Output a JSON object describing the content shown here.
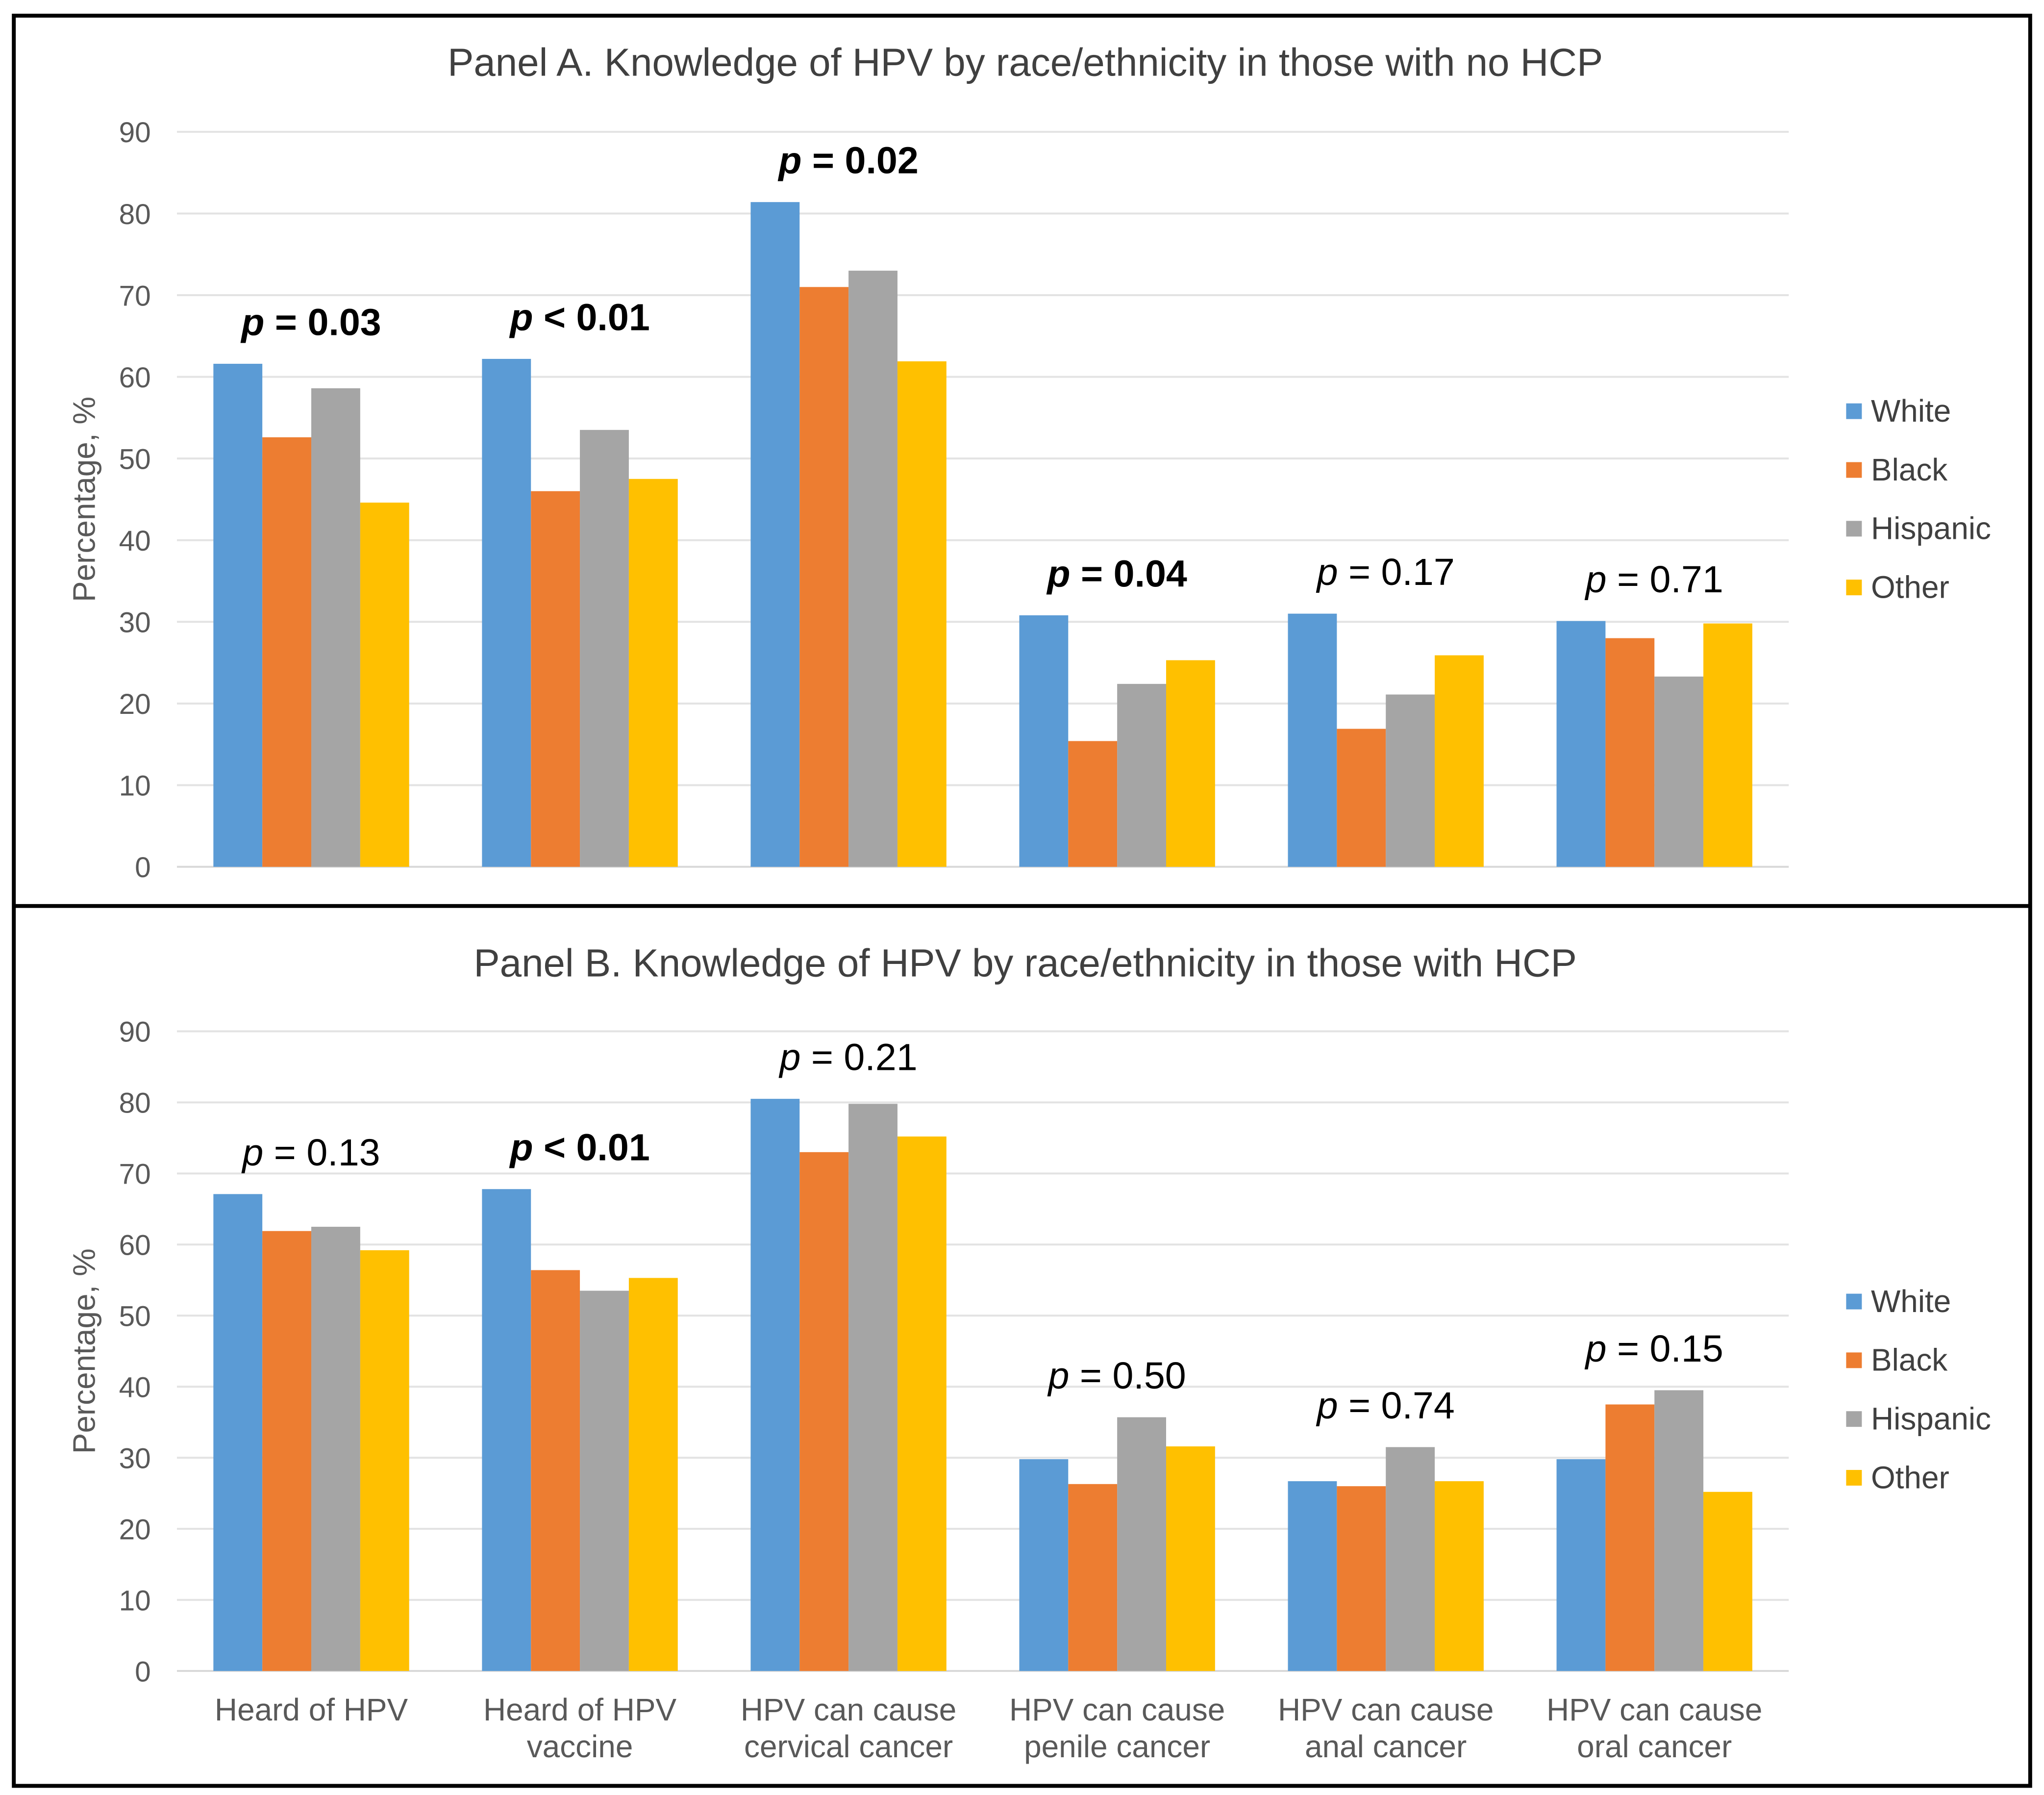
{
  "colors": {
    "White": "#5b9bd5",
    "Black": "#ed7d31",
    "Hispanic": "#a5a5a5",
    "Other": "#ffc000"
  },
  "chart_data": [
    {
      "type": "bar",
      "title": "Panel A. Knowledge of HPV by race/ethnicity in those with no HCP",
      "xlabel": "",
      "ylabel": "Percentage, %",
      "ylim": [
        0,
        90
      ],
      "yticks": [
        "0",
        "10",
        "20",
        "30",
        "40",
        "50",
        "60",
        "70",
        "80",
        "90"
      ],
      "grid": true,
      "legend": "right",
      "categories": [
        "Heard of HPV",
        "Heard of HPV vaccine",
        "HPV can cause cervical cancer",
        "HPV can cause penile cancer",
        "HPV can cause anal cancer",
        "HPV can cause oral cancer"
      ],
      "series": [
        {
          "name": "White",
          "values": [
            61.6,
            62.2,
            81.4,
            30.8,
            31.0,
            30.1
          ]
        },
        {
          "name": "Black",
          "values": [
            52.6,
            46.0,
            71.0,
            15.4,
            16.9,
            28.0
          ]
        },
        {
          "name": "Hispanic",
          "values": [
            58.6,
            53.5,
            73.0,
            22.4,
            21.1,
            23.3
          ]
        },
        {
          "name": "Other",
          "values": [
            44.6,
            47.5,
            61.9,
            25.3,
            25.9,
            29.8
          ]
        }
      ],
      "p_values": [
        {
          "prefix": "p",
          "text": " = 0.03",
          "bold": true
        },
        {
          "prefix": "p",
          "text": " < 0.01",
          "bold": true
        },
        {
          "prefix": "p",
          "text": " = 0.02",
          "bold": true
        },
        {
          "prefix": "p",
          "text": " = 0.04",
          "bold": true
        },
        {
          "prefix": "p",
          "text": " = 0.17",
          "bold": false
        },
        {
          "prefix": "p",
          "text": " = 0.71",
          "bold": false
        }
      ]
    },
    {
      "type": "bar",
      "title": "Panel B. Knowledge of HPV by race/ethnicity in those with HCP",
      "xlabel": "",
      "ylabel": "Percentage, %",
      "ylim": [
        0,
        90
      ],
      "yticks": [
        "0",
        "10",
        "20",
        "30",
        "40",
        "50",
        "60",
        "70",
        "80",
        "90"
      ],
      "grid": true,
      "legend": "right",
      "categories": [
        "Heard of HPV",
        "Heard of HPV vaccine",
        "HPV can cause cervical cancer",
        "HPV can cause penile cancer",
        "HPV can cause anal cancer",
        "HPV can cause oral cancer"
      ],
      "category_lines": [
        [
          "Heard of HPV",
          ""
        ],
        [
          "Heard of HPV",
          "vaccine"
        ],
        [
          "HPV can cause",
          "cervical cancer"
        ],
        [
          "HPV can cause",
          "penile cancer"
        ],
        [
          "HPV can cause",
          "anal cancer"
        ],
        [
          "HPV can cause",
          "oral cancer"
        ]
      ],
      "series": [
        {
          "name": "White",
          "values": [
            67.1,
            67.8,
            80.5,
            29.8,
            26.7,
            29.8
          ]
        },
        {
          "name": "Black",
          "values": [
            61.9,
            56.4,
            73.0,
            26.3,
            26.0,
            37.5
          ]
        },
        {
          "name": "Hispanic",
          "values": [
            62.5,
            53.5,
            79.8,
            35.7,
            31.5,
            39.5
          ]
        },
        {
          "name": "Other",
          "values": [
            59.2,
            55.3,
            75.2,
            31.6,
            26.7,
            25.2
          ]
        }
      ],
      "p_values": [
        {
          "prefix": "p",
          "text": " = 0.13",
          "bold": false
        },
        {
          "prefix": "p",
          "text": " < 0.01",
          "bold": true
        },
        {
          "prefix": "p",
          "text": " =  0.21",
          "bold": false
        },
        {
          "prefix": "p",
          "text": " = 0.50",
          "bold": false
        },
        {
          "prefix": "p",
          "text": " = 0.74",
          "bold": false
        },
        {
          "prefix": "p",
          "text": " = 0.15",
          "bold": false
        }
      ]
    }
  ]
}
